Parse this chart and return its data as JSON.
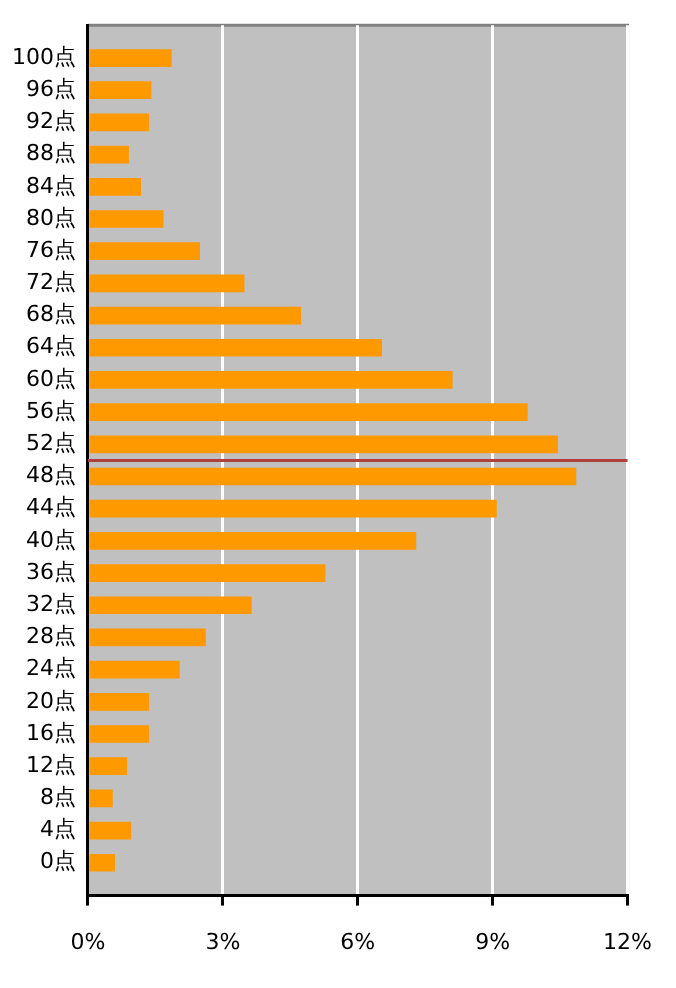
{
  "chart_data": {
    "type": "bar",
    "orientation": "horizontal",
    "x": [
      100,
      96,
      92,
      88,
      84,
      80,
      76,
      72,
      68,
      64,
      60,
      56,
      52,
      48,
      44,
      40,
      36,
      32,
      28,
      24,
      20,
      16,
      12,
      8,
      4,
      0
    ],
    "values": [
      1.86,
      1.41,
      1.36,
      0.91,
      1.18,
      1.68,
      2.49,
      3.48,
      4.74,
      6.54,
      8.11,
      9.78,
      10.45,
      10.86,
      9.09,
      7.3,
      5.28,
      3.64,
      2.62,
      2.04,
      1.36,
      1.36,
      0.87,
      0.55,
      0.96,
      0.6
    ],
    "color": "#ff9900",
    "xlim": [
      0,
      12
    ],
    "xticks": [
      {
        "value": 0,
        "label": "0%"
      },
      {
        "value": 3,
        "label": "3%"
      },
      {
        "value": 6,
        "label": "6%"
      },
      {
        "value": 9,
        "label": "9%"
      },
      {
        "value": 12,
        "label": "12%"
      }
    ],
    "ylim": [
      -2,
      102
    ],
    "yticks": [
      {
        "value": 0,
        "label": "0点"
      },
      {
        "value": 4,
        "label": "4点"
      },
      {
        "value": 8,
        "label": "8点"
      },
      {
        "value": 12,
        "label": "12点"
      },
      {
        "value": 16,
        "label": "16点"
      },
      {
        "value": 20,
        "label": "20点"
      },
      {
        "value": 24,
        "label": "24点"
      },
      {
        "value": 28,
        "label": "28点"
      },
      {
        "value": 32,
        "label": "32点"
      },
      {
        "value": 36,
        "label": "36点"
      },
      {
        "value": 40,
        "label": "40点"
      },
      {
        "value": 44,
        "label": "44点"
      },
      {
        "value": 48,
        "label": "48点"
      },
      {
        "value": 52,
        "label": "52点"
      },
      {
        "value": 56,
        "label": "56点"
      },
      {
        "value": 60,
        "label": "60点"
      },
      {
        "value": 64,
        "label": "64点"
      },
      {
        "value": 68,
        "label": "68点"
      },
      {
        "value": 72,
        "label": "72点"
      },
      {
        "value": 76,
        "label": "76点"
      },
      {
        "value": 80,
        "label": "80点"
      },
      {
        "value": 84,
        "label": "84点"
      },
      {
        "value": 88,
        "label": "88点"
      },
      {
        "value": 92,
        "label": "92点"
      },
      {
        "value": 96,
        "label": "96点"
      },
      {
        "value": 100,
        "label": "100点"
      }
    ],
    "ref_lines": [
      {
        "axis": "y",
        "value": 50,
        "color": "#b04040"
      }
    ],
    "grid": "x"
  }
}
